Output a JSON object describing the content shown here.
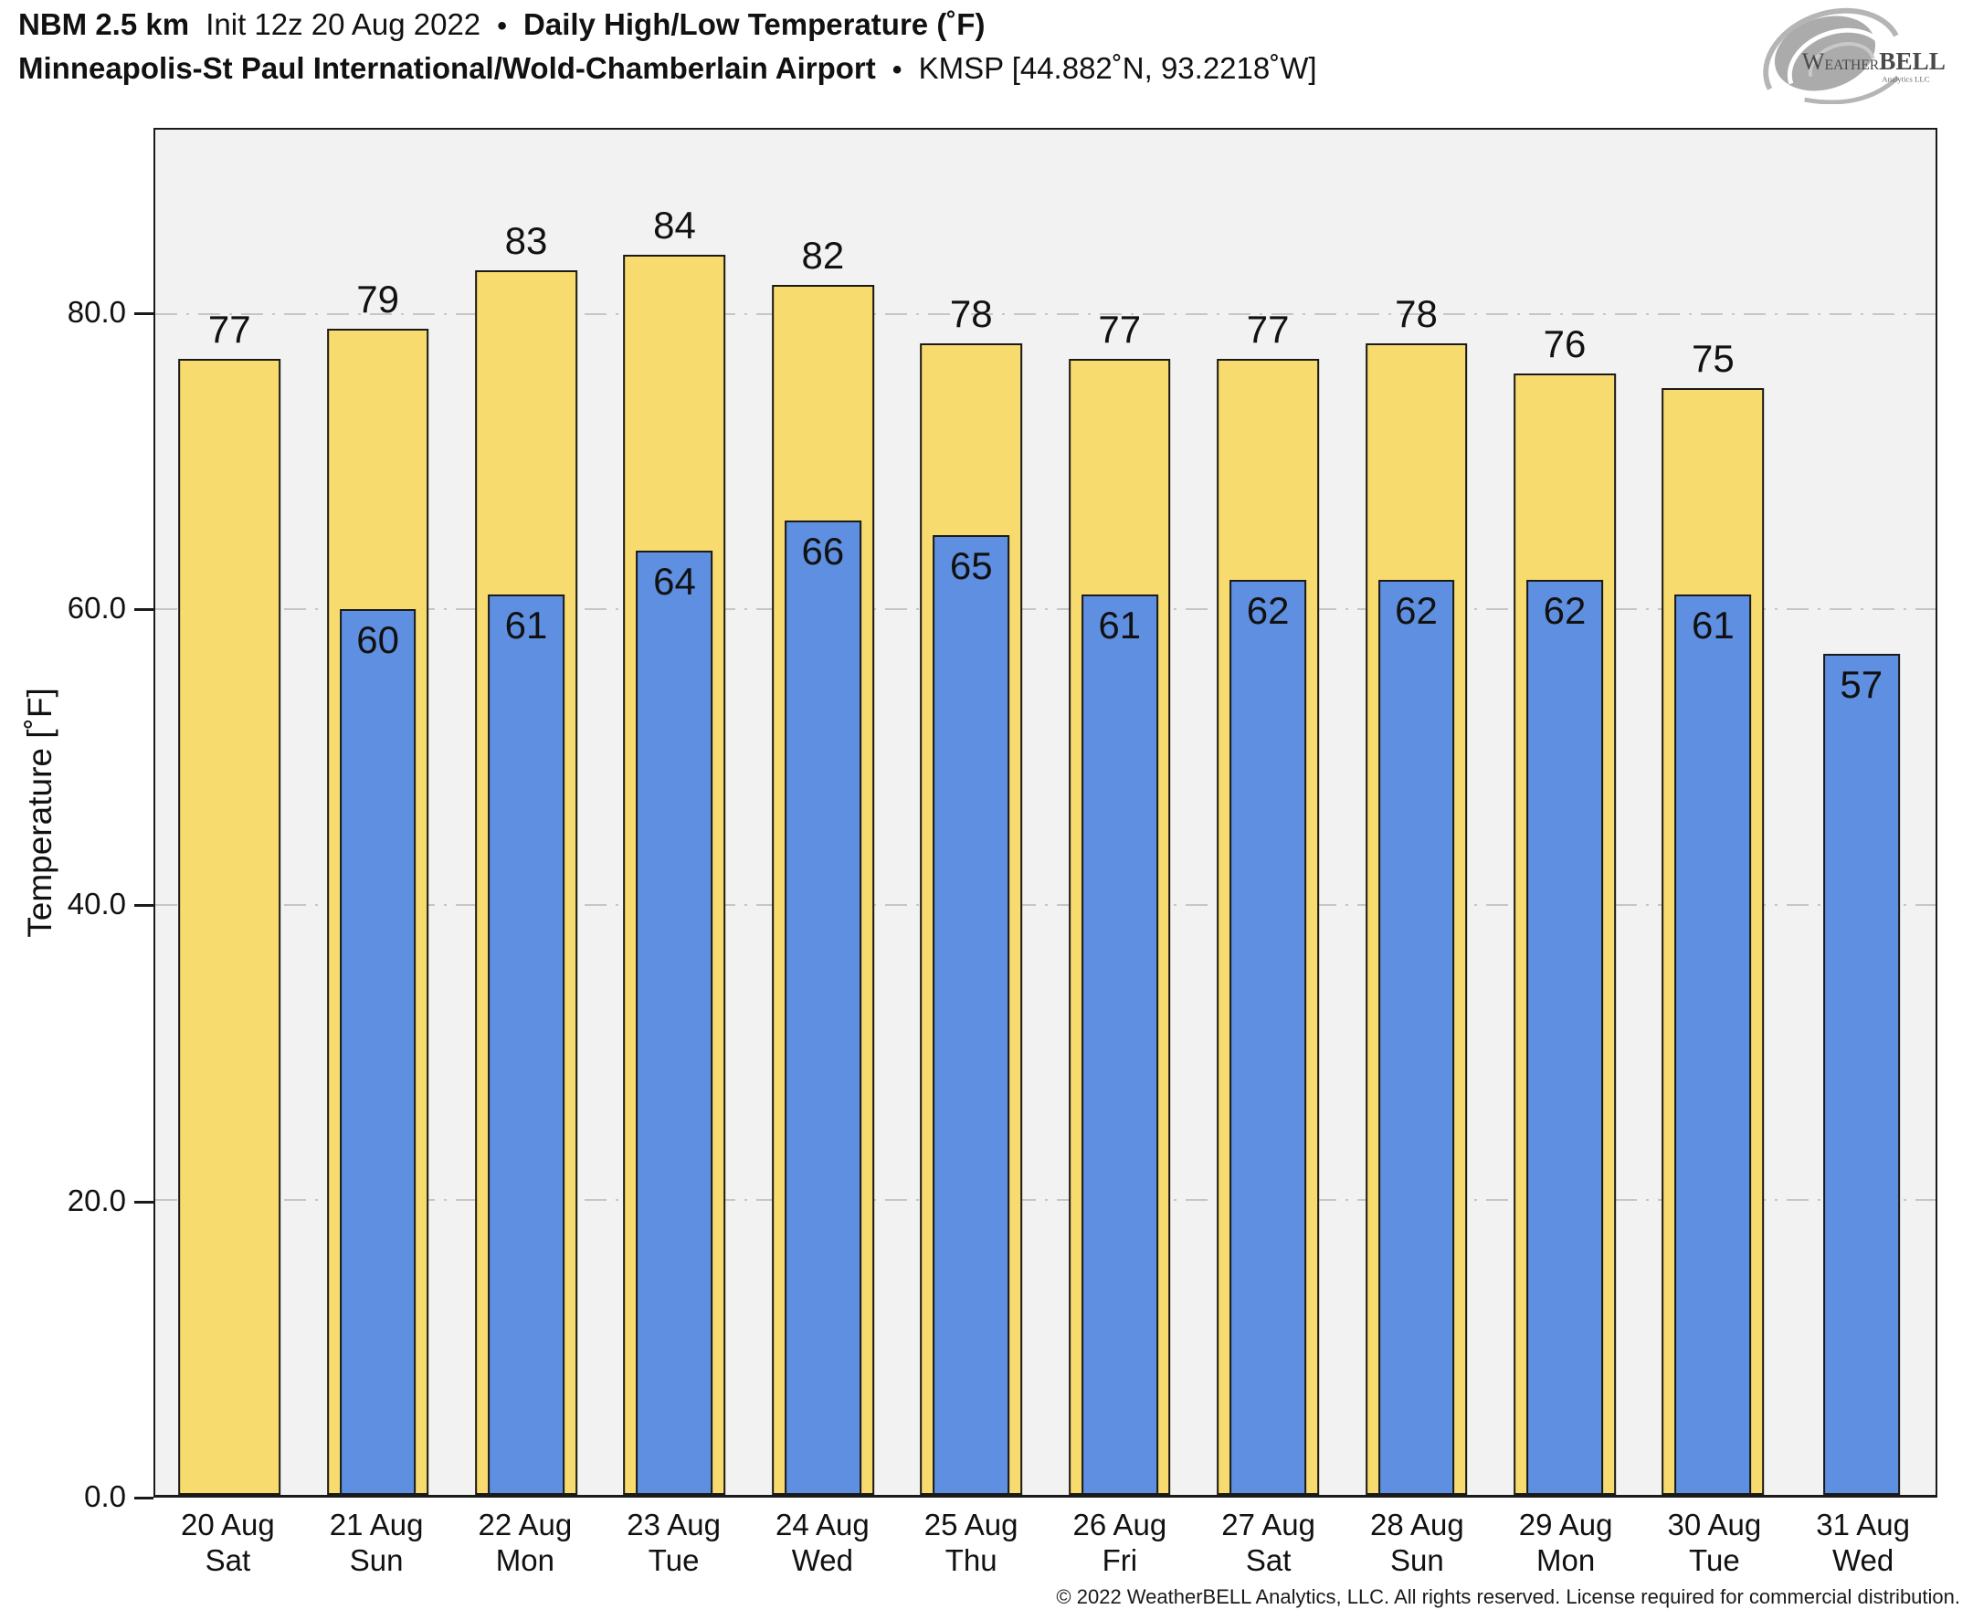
{
  "header": {
    "title_model": "NBM 2.5 km",
    "title_init": "Init 12z 20 Aug 2022",
    "title_sep": "•",
    "title_product": "Daily High/Low Temperature (˚F)",
    "subtitle_station": "Minneapolis-St Paul International/Wold-Chamberlain Airport",
    "subtitle_sep": "•",
    "subtitle_id": "KMSP [44.882˚N, 93.2218˚W]"
  },
  "logo": {
    "part_w": "W",
    "part_eather": "EATHER",
    "part_bell": "BELL",
    "tagline": "Analytics LLC"
  },
  "chart_data": {
    "type": "bar",
    "title": "Daily High/Low Temperature (˚F)",
    "ylabel": "Temperature [˚F]",
    "ylim": [
      0,
      92.5
    ],
    "yticks": [
      0,
      20,
      40,
      60,
      80
    ],
    "ytick_labels": [
      "0.0",
      "20.0",
      "40.0",
      "60.0",
      "80.0"
    ],
    "grid": "horizontal dash-dot lines at 20, 40, 60, 80",
    "legend": "none",
    "categories": [
      {
        "date": "20 Aug",
        "day": "Sat"
      },
      {
        "date": "21 Aug",
        "day": "Sun"
      },
      {
        "date": "22 Aug",
        "day": "Mon"
      },
      {
        "date": "23 Aug",
        "day": "Tue"
      },
      {
        "date": "24 Aug",
        "day": "Wed"
      },
      {
        "date": "25 Aug",
        "day": "Thu"
      },
      {
        "date": "26 Aug",
        "day": "Fri"
      },
      {
        "date": "27 Aug",
        "day": "Sat"
      },
      {
        "date": "28 Aug",
        "day": "Sun"
      },
      {
        "date": "29 Aug",
        "day": "Mon"
      },
      {
        "date": "30 Aug",
        "day": "Tue"
      },
      {
        "date": "31 Aug",
        "day": "Wed"
      }
    ],
    "series": [
      {
        "name": "Daily High",
        "color": "#f8db6e",
        "values": [
          77,
          79,
          83,
          84,
          82,
          78,
          77,
          77,
          78,
          76,
          75,
          null
        ]
      },
      {
        "name": "Daily Low",
        "color": "#5f8fe0",
        "values": [
          null,
          60,
          61,
          64,
          66,
          65,
          61,
          62,
          62,
          62,
          61,
          57
        ]
      }
    ]
  },
  "colors": {
    "bar_high": "#f8db6e",
    "bar_low": "#5f8fe0",
    "bar_border": "#1a1a1a",
    "plot_bg": "#f2f2f2",
    "grid": "#c6c6c6",
    "axis": "#1a1a1a",
    "logo_gray": "#ababab"
  },
  "footer": {
    "copyright": "© 2022 WeatherBELL Analytics, LLC. All rights reserved. License required for commercial distribution."
  }
}
